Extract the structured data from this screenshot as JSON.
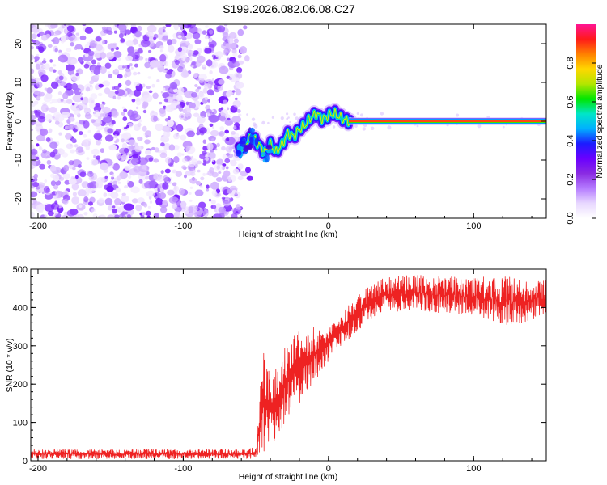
{
  "title": "S199.2026.082.06.08.C27",
  "chart_data": [
    {
      "type": "heatmap",
      "name": "spectrogram",
      "xlabel": "Height of straight line (km)",
      "ylabel": "Frequency (Hz)",
      "xlim": [
        -205,
        150
      ],
      "ylim": [
        -25,
        25
      ],
      "x_ticks": [
        -200,
        -100,
        0,
        100
      ],
      "y_ticks": [
        20,
        10,
        0,
        -10,
        -20
      ],
      "noise_region_x": [
        -205,
        -60
      ],
      "signal_track": [
        {
          "x": -62,
          "y": -7.5
        },
        {
          "x": -55,
          "y": -5
        },
        {
          "x": -52,
          "y": -4
        },
        {
          "x": -48,
          "y": -6
        },
        {
          "x": -44,
          "y": -8
        },
        {
          "x": -40,
          "y": -6
        },
        {
          "x": -36,
          "y": -8
        },
        {
          "x": -32,
          "y": -6
        },
        {
          "x": -28,
          "y": -3
        },
        {
          "x": -24,
          "y": -4
        },
        {
          "x": -20,
          "y": -2
        },
        {
          "x": -16,
          "y": -1
        },
        {
          "x": -12,
          "y": 1
        },
        {
          "x": -8,
          "y": 2
        },
        {
          "x": -4,
          "y": 0.5
        },
        {
          "x": 0,
          "y": 1.5
        },
        {
          "x": 4,
          "y": 2
        },
        {
          "x": 8,
          "y": 1
        },
        {
          "x": 12,
          "y": 0.3
        },
        {
          "x": 16,
          "y": 0
        }
      ],
      "carrier_line": {
        "x_start": 14,
        "x_end": 150,
        "y": 0
      },
      "colorbar": {
        "label": "Normalized spectral amplitude",
        "range": [
          0.0,
          1.0
        ],
        "ticks": [
          "0.0",
          "0.2",
          "0.4",
          "0.6",
          "0.8"
        ],
        "tick_values": [
          0.0,
          0.2,
          0.4,
          0.6,
          0.8
        ],
        "colors": [
          "#ffffff",
          "#e8d8ff",
          "#b57cff",
          "#8a2be2",
          "#6a00ff",
          "#1c1cff",
          "#00b0ff",
          "#00e6c8",
          "#00e600",
          "#b4e600",
          "#ffd700",
          "#ff8000",
          "#ff1a1a",
          "#ff1493"
        ]
      }
    },
    {
      "type": "line",
      "name": "snr",
      "xlabel": "Height of straight line (km)",
      "ylabel": "SNR (10 * v/v)",
      "xlim": [
        -205,
        150
      ],
      "ylim": [
        0,
        500
      ],
      "x_ticks": [
        -200,
        -100,
        0,
        100
      ],
      "y_ticks": [
        0,
        100,
        200,
        300,
        400,
        500
      ],
      "line_color": "#ee2222",
      "series_envelope": [
        {
          "x": -205,
          "low": 5,
          "high": 30
        },
        {
          "x": -60,
          "low": 5,
          "high": 30
        },
        {
          "x": -50,
          "low": 5,
          "high": 35
        },
        {
          "x": -45,
          "low": 20,
          "high": 290
        },
        {
          "x": -40,
          "low": 40,
          "high": 230
        },
        {
          "x": -35,
          "low": 50,
          "high": 250
        },
        {
          "x": -30,
          "low": 100,
          "high": 300
        },
        {
          "x": -25,
          "low": 130,
          "high": 320
        },
        {
          "x": -20,
          "low": 150,
          "high": 340
        },
        {
          "x": -15,
          "low": 180,
          "high": 330
        },
        {
          "x": -10,
          "low": 200,
          "high": 350
        },
        {
          "x": -5,
          "low": 230,
          "high": 340
        },
        {
          "x": 0,
          "low": 260,
          "high": 360
        },
        {
          "x": 10,
          "low": 300,
          "high": 390
        },
        {
          "x": 20,
          "low": 340,
          "high": 430
        },
        {
          "x": 30,
          "low": 370,
          "high": 460
        },
        {
          "x": 40,
          "low": 390,
          "high": 480
        },
        {
          "x": 60,
          "low": 390,
          "high": 485
        },
        {
          "x": 100,
          "low": 380,
          "high": 480
        },
        {
          "x": 125,
          "low": 350,
          "high": 480
        },
        {
          "x": 150,
          "low": 380,
          "high": 470
        }
      ]
    }
  ]
}
